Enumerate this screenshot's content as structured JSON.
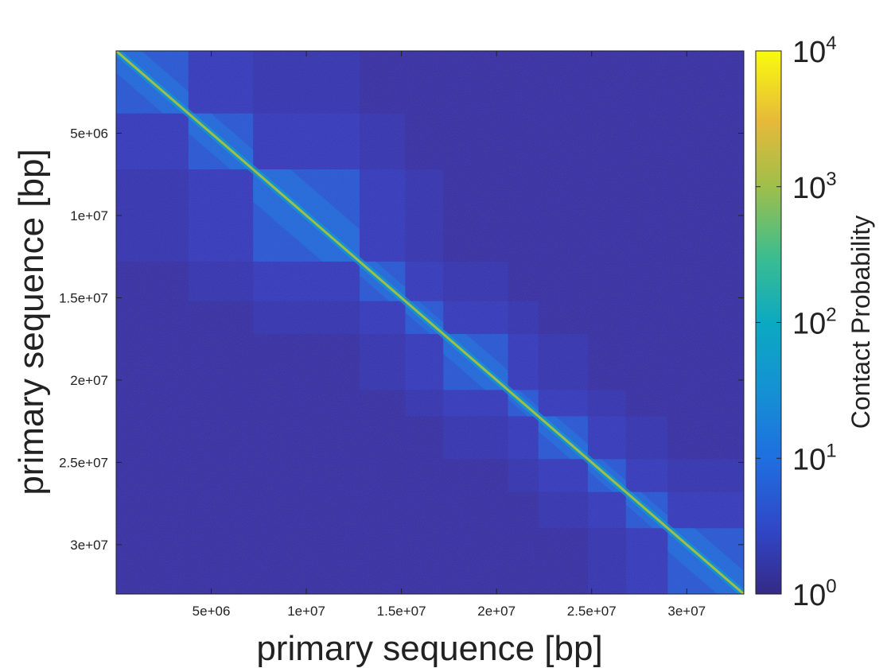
{
  "chart_data": {
    "type": "heatmap",
    "title": "",
    "xlabel": "primary sequence [bp]",
    "ylabel": "primary sequence [bp]",
    "xlim": [
      0,
      33000000
    ],
    "ylim": [
      0,
      33000000
    ],
    "y_reversed": true,
    "x_ticks": [
      {
        "value": 5000000,
        "label": "5e+06"
      },
      {
        "value": 10000000,
        "label": "1e+07"
      },
      {
        "value": 15000000,
        "label": "1.5e+07"
      },
      {
        "value": 20000000,
        "label": "2e+07"
      },
      {
        "value": 25000000,
        "label": "2.5e+07"
      },
      {
        "value": 30000000,
        "label": "3e+07"
      }
    ],
    "y_ticks": [
      {
        "value": 5000000,
        "label": "5e+06"
      },
      {
        "value": 10000000,
        "label": "1e+07"
      },
      {
        "value": 15000000,
        "label": "1.5e+07"
      },
      {
        "value": 20000000,
        "label": "2e+07"
      },
      {
        "value": 25000000,
        "label": "2.5e+07"
      },
      {
        "value": 30000000,
        "label": "3e+07"
      }
    ],
    "colorbar": {
      "label": "Contact Probability",
      "scale": "log",
      "range": [
        1,
        10000
      ],
      "colormap": "parula",
      "ticks": [
        {
          "value": 1,
          "base": "10",
          "exp": "0"
        },
        {
          "value": 10,
          "base": "10",
          "exp": "1"
        },
        {
          "value": 100,
          "base": "10",
          "exp": "2"
        },
        {
          "value": 1000,
          "base": "10",
          "exp": "3"
        },
        {
          "value": 10000,
          "base": "10",
          "exp": "4"
        }
      ]
    },
    "domains_bp": [
      [
        0,
        3800000
      ],
      [
        3800000,
        7200000
      ],
      [
        7200000,
        12800000
      ],
      [
        12800000,
        15200000
      ],
      [
        15200000,
        17200000
      ],
      [
        17200000,
        20600000
      ],
      [
        20600000,
        22200000
      ],
      [
        22200000,
        24800000
      ],
      [
        24800000,
        26800000
      ],
      [
        26800000,
        29000000
      ],
      [
        29000000,
        33000000
      ]
    ],
    "diagonal_value": 1000,
    "background_value": 1,
    "grid": false,
    "legend": "none"
  }
}
